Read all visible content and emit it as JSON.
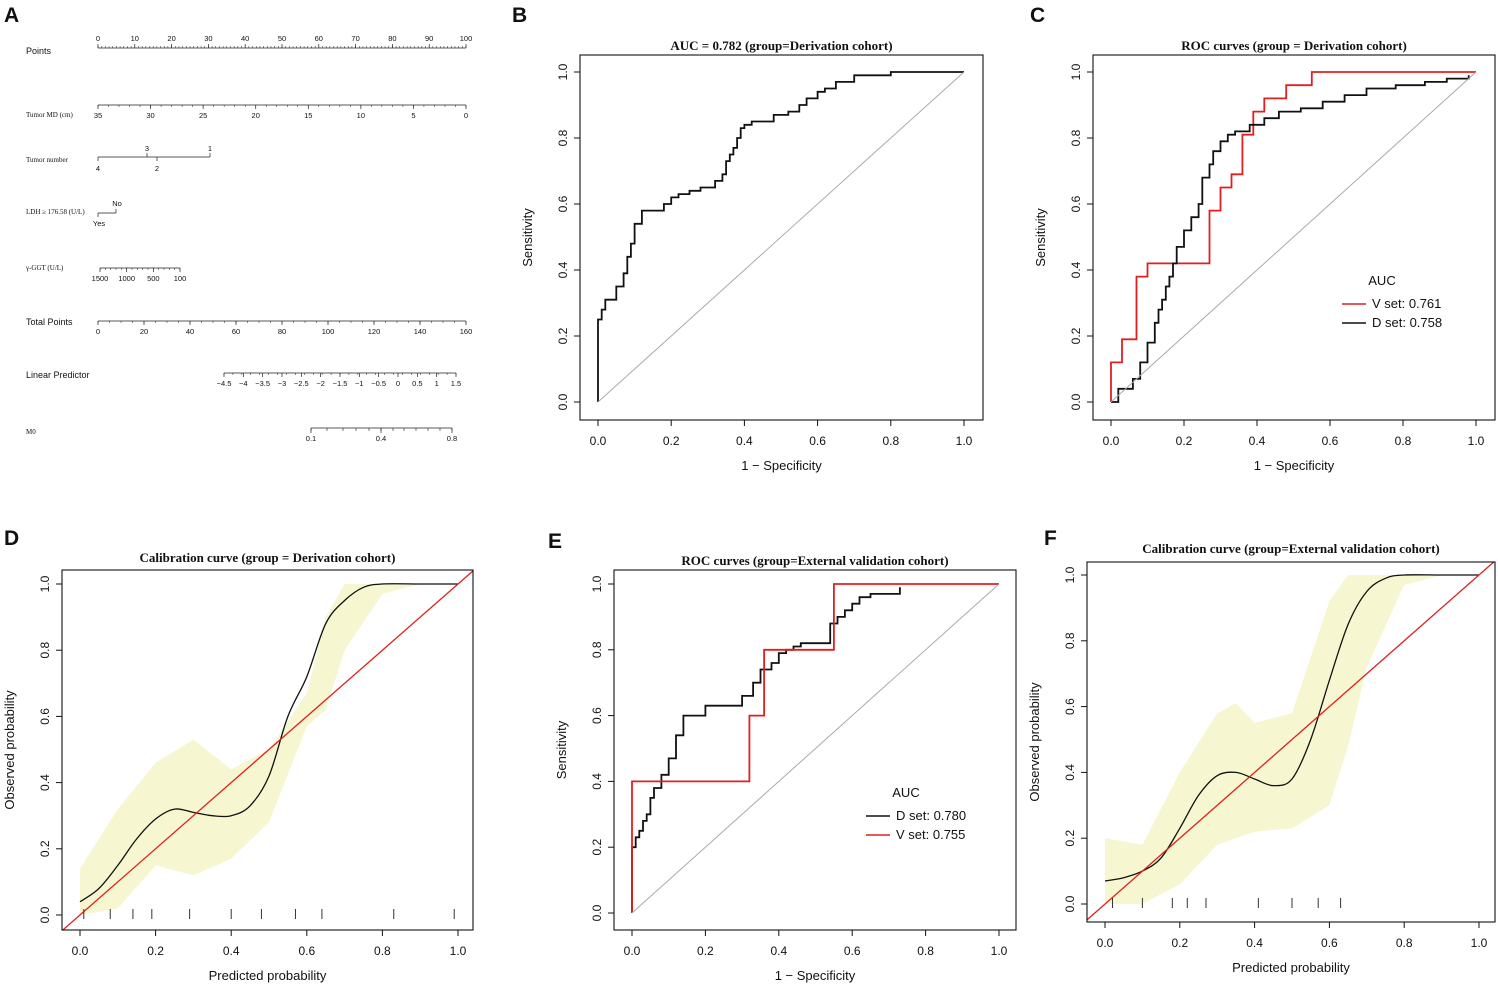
{
  "panels": {
    "A": {
      "label": "A"
    },
    "B": {
      "label": "B"
    },
    "C": {
      "label": "C"
    },
    "D": {
      "label": "D"
    },
    "E": {
      "label": "E"
    },
    "F": {
      "label": "F"
    }
  },
  "nomogram": {
    "rows": [
      {
        "label": "Points",
        "ticks": [
          "0",
          "10",
          "20",
          "30",
          "40",
          "50",
          "60",
          "70",
          "80",
          "90",
          "100"
        ],
        "minor": 100
      },
      {
        "label": "Tumor MD (cm)",
        "ticks": [
          "35",
          "30",
          "25",
          "20",
          "15",
          "10",
          "5",
          "0"
        ],
        "minor": 35
      },
      {
        "label": "Tumor number",
        "ticks_top": [
          "3",
          "1"
        ],
        "ticks_bottom": [
          "4",
          "2"
        ]
      },
      {
        "label": "LDH ≥ 176.58 (U/L)",
        "ticks_top": [
          "No"
        ],
        "ticks_bottom": [
          "Yes"
        ]
      },
      {
        "label": "γ-GGT (U/L)",
        "ticks": [
          "1500",
          "1000",
          "500",
          "100"
        ],
        "minor": 15
      },
      {
        "label": "Total Points",
        "ticks": [
          "0",
          "20",
          "40",
          "60",
          "80",
          "100",
          "120",
          "140",
          "160"
        ],
        "minor": 32
      },
      {
        "label": "Linear Predictor",
        "ticks": [
          "−4.5",
          "−4",
          "−3.5",
          "−3",
          "−2.5",
          "−2",
          "−1.5",
          "−1",
          "−0.5",
          "0",
          "0.5",
          "1",
          "1.5"
        ]
      },
      {
        "label": "M0",
        "ticks": [
          "0.1",
          "0.4",
          "0.8"
        ],
        "minor": 14
      }
    ]
  },
  "chart_data": [
    {
      "id": "B",
      "type": "line",
      "title": "AUC = 0.782  (group=Derivation cohort)",
      "xlabel": "1 − Specificity",
      "ylabel": "Sensitivity",
      "xlim": [
        0,
        1
      ],
      "ylim": [
        0,
        1
      ],
      "ticks": [
        "0.0",
        "0.2",
        "0.4",
        "0.6",
        "0.8",
        "1.0"
      ],
      "series": [
        {
          "name": "Derivation cohort",
          "color": "#111111",
          "x": [
            0,
            0,
            0.01,
            0.01,
            0.02,
            0.02,
            0.05,
            0.05,
            0.07,
            0.07,
            0.08,
            0.08,
            0.09,
            0.09,
            0.1,
            0.1,
            0.12,
            0.12,
            0.18,
            0.18,
            0.2,
            0.2,
            0.22,
            0.22,
            0.25,
            0.25,
            0.28,
            0.28,
            0.32,
            0.32,
            0.34,
            0.34,
            0.35,
            0.35,
            0.36,
            0.36,
            0.37,
            0.37,
            0.38,
            0.38,
            0.39,
            0.39,
            0.4,
            0.4,
            0.42,
            0.42,
            0.48,
            0.48,
            0.52,
            0.52,
            0.55,
            0.55,
            0.57,
            0.57,
            0.6,
            0.6,
            0.62,
            0.62,
            0.65,
            0.65,
            0.7,
            0.7,
            0.8,
            0.8,
            1
          ],
          "y": [
            0,
            0.25,
            0.25,
            0.28,
            0.28,
            0.31,
            0.31,
            0.35,
            0.35,
            0.39,
            0.39,
            0.44,
            0.44,
            0.48,
            0.48,
            0.54,
            0.54,
            0.58,
            0.58,
            0.6,
            0.6,
            0.62,
            0.62,
            0.63,
            0.63,
            0.64,
            0.64,
            0.65,
            0.65,
            0.67,
            0.67,
            0.69,
            0.69,
            0.73,
            0.73,
            0.75,
            0.75,
            0.77,
            0.77,
            0.8,
            0.8,
            0.83,
            0.83,
            0.84,
            0.84,
            0.85,
            0.85,
            0.87,
            0.87,
            0.88,
            0.88,
            0.9,
            0.9,
            0.92,
            0.92,
            0.94,
            0.94,
            0.95,
            0.95,
            0.97,
            0.97,
            0.99,
            0.99,
            1,
            1
          ]
        },
        {
          "name": "reference",
          "color": "#aaaaaa",
          "x": [
            0,
            1
          ],
          "y": [
            0,
            1
          ]
        }
      ]
    },
    {
      "id": "C",
      "type": "line",
      "title": "ROC curves (group = Derivation cohort)",
      "xlabel": "1 − Specificity",
      "ylabel": "Sensitivity",
      "xlim": [
        0,
        1
      ],
      "ylim": [
        0,
        1
      ],
      "ticks": [
        "0.0",
        "0.2",
        "0.4",
        "0.6",
        "0.8",
        "1.0"
      ],
      "legend": {
        "title": "AUC",
        "entries": [
          "V set: 0.761",
          "D set: 0.758"
        ],
        "position": "right"
      },
      "series": [
        {
          "name": "V set: 0.761",
          "color": "#e02020",
          "x": [
            0,
            0,
            0.03,
            0.03,
            0.07,
            0.07,
            0.1,
            0.1,
            0.27,
            0.27,
            0.3,
            0.3,
            0.33,
            0.33,
            0.36,
            0.36,
            0.39,
            0.39,
            0.42,
            0.42,
            0.48,
            0.48,
            0.55,
            0.55,
            0.6,
            0.6,
            0.68,
            0.68,
            1
          ],
          "y": [
            0,
            0.12,
            0.12,
            0.19,
            0.19,
            0.38,
            0.38,
            0.42,
            0.42,
            0.58,
            0.58,
            0.65,
            0.65,
            0.69,
            0.69,
            0.81,
            0.81,
            0.88,
            0.88,
            0.92,
            0.92,
            0.96,
            0.96,
            1,
            1,
            1,
            1,
            1,
            1
          ]
        },
        {
          "name": "D set: 0.758",
          "color": "#111111",
          "x": [
            0,
            0.02,
            0.02,
            0.06,
            0.06,
            0.08,
            0.08,
            0.1,
            0.1,
            0.12,
            0.12,
            0.13,
            0.13,
            0.14,
            0.14,
            0.15,
            0.15,
            0.16,
            0.16,
            0.17,
            0.17,
            0.18,
            0.18,
            0.2,
            0.2,
            0.22,
            0.22,
            0.24,
            0.24,
            0.25,
            0.25,
            0.27,
            0.27,
            0.28,
            0.28,
            0.3,
            0.3,
            0.32,
            0.32,
            0.34,
            0.34,
            0.38,
            0.38,
            0.42,
            0.42,
            0.46,
            0.46,
            0.52,
            0.52,
            0.58,
            0.58,
            0.64,
            0.64,
            0.7,
            0.7,
            0.78,
            0.78,
            0.86,
            0.86,
            0.92,
            0.92,
            0.98,
            0.98
          ],
          "y": [
            0,
            0,
            0.04,
            0.04,
            0.07,
            0.07,
            0.12,
            0.12,
            0.18,
            0.18,
            0.24,
            0.24,
            0.28,
            0.28,
            0.31,
            0.31,
            0.35,
            0.35,
            0.38,
            0.38,
            0.42,
            0.42,
            0.47,
            0.47,
            0.52,
            0.52,
            0.56,
            0.56,
            0.6,
            0.6,
            0.68,
            0.68,
            0.72,
            0.72,
            0.76,
            0.76,
            0.79,
            0.79,
            0.81,
            0.81,
            0.82,
            0.82,
            0.84,
            0.84,
            0.86,
            0.86,
            0.88,
            0.88,
            0.89,
            0.89,
            0.91,
            0.91,
            0.93,
            0.93,
            0.95,
            0.95,
            0.96,
            0.96,
            0.97,
            0.97,
            0.98,
            0.98,
            0.99
          ]
        },
        {
          "name": "reference",
          "color": "#aaaaaa",
          "x": [
            0,
            1
          ],
          "y": [
            0,
            1
          ]
        }
      ]
    },
    {
      "id": "D",
      "type": "line",
      "title": "Calibration curve (group = Derivation cohort)",
      "xlabel": "Predicted probability",
      "ylabel": "Observed probability",
      "xlim": [
        0,
        1
      ],
      "ylim": [
        0,
        1
      ],
      "ticks": [
        "0.0",
        "0.2",
        "0.4",
        "0.6",
        "0.8",
        "1.0"
      ],
      "band": {
        "color": "#f6f6d0",
        "x": [
          0,
          0.1,
          0.2,
          0.3,
          0.4,
          0.5,
          0.6,
          0.65,
          0.7,
          0.8,
          0.9,
          1
        ],
        "upper": [
          0.14,
          0.32,
          0.46,
          0.53,
          0.44,
          0.5,
          0.67,
          0.9,
          1,
          1,
          1,
          1
        ],
        "lower": [
          0.0,
          0.02,
          0.15,
          0.12,
          0.17,
          0.28,
          0.57,
          0.62,
          0.8,
          0.97,
          1,
          1
        ]
      },
      "rug": [
        0.01,
        0.08,
        0.14,
        0.19,
        0.29,
        0.4,
        0.48,
        0.57,
        0.64,
        0.83,
        0.99
      ],
      "series": [
        {
          "name": "calibration",
          "color": "#111111",
          "x": [
            0,
            0.05,
            0.1,
            0.15,
            0.2,
            0.25,
            0.3,
            0.35,
            0.4,
            0.45,
            0.5,
            0.55,
            0.6,
            0.65,
            0.7,
            0.75,
            0.8,
            0.9,
            1
          ],
          "y": [
            0.04,
            0.08,
            0.15,
            0.23,
            0.29,
            0.32,
            0.31,
            0.3,
            0.3,
            0.33,
            0.42,
            0.6,
            0.72,
            0.88,
            0.95,
            0.99,
            1,
            1,
            1
          ]
        },
        {
          "name": "ideal",
          "color": "#e02020",
          "x": [
            -0.05,
            1.05
          ],
          "y": [
            -0.05,
            1.05
          ]
        }
      ]
    },
    {
      "id": "E",
      "type": "line",
      "title": "ROC curves (group=External validation cohort)",
      "xlabel": "1 − Specificity",
      "ylabel": "Sensitivity",
      "xlim": [
        0,
        1
      ],
      "ylim": [
        0,
        1
      ],
      "ticks": [
        "0.0",
        "0.2",
        "0.4",
        "0.6",
        "0.8",
        "1.0"
      ],
      "legend": {
        "title": "AUC",
        "entries": [
          "D set: 0.780",
          "V set: 0.755"
        ],
        "position": "bottom-right"
      },
      "series": [
        {
          "name": "D set: 0.780",
          "color": "#111111",
          "x": [
            0,
            0,
            0.01,
            0.01,
            0.02,
            0.02,
            0.03,
            0.03,
            0.04,
            0.04,
            0.05,
            0.05,
            0.06,
            0.06,
            0.08,
            0.08,
            0.1,
            0.1,
            0.12,
            0.12,
            0.14,
            0.14,
            0.2,
            0.2,
            0.3,
            0.3,
            0.33,
            0.33,
            0.35,
            0.35,
            0.38,
            0.38,
            0.4,
            0.4,
            0.42,
            0.42,
            0.44,
            0.44,
            0.46,
            0.46,
            0.54,
            0.54,
            0.56,
            0.56,
            0.58,
            0.58,
            0.6,
            0.6,
            0.62,
            0.62,
            0.65,
            0.65,
            0.73,
            0.73
          ],
          "y": [
            0,
            0.2,
            0.2,
            0.23,
            0.23,
            0.25,
            0.25,
            0.28,
            0.28,
            0.3,
            0.3,
            0.35,
            0.35,
            0.38,
            0.38,
            0.42,
            0.42,
            0.47,
            0.47,
            0.54,
            0.54,
            0.6,
            0.6,
            0.63,
            0.63,
            0.66,
            0.66,
            0.7,
            0.7,
            0.74,
            0.74,
            0.76,
            0.76,
            0.79,
            0.79,
            0.8,
            0.8,
            0.81,
            0.81,
            0.82,
            0.82,
            0.88,
            0.88,
            0.9,
            0.9,
            0.92,
            0.92,
            0.94,
            0.94,
            0.96,
            0.96,
            0.97,
            0.97,
            0.99
          ]
        },
        {
          "name": "V set: 0.755",
          "color": "#e02020",
          "x": [
            0,
            0,
            0.32,
            0.32,
            0.36,
            0.36,
            0.55,
            0.55,
            1
          ],
          "y": [
            0,
            0.4,
            0.4,
            0.6,
            0.6,
            0.8,
            0.8,
            1,
            1
          ]
        },
        {
          "name": "reference",
          "color": "#aaaaaa",
          "x": [
            0,
            1
          ],
          "y": [
            0,
            1
          ]
        }
      ]
    },
    {
      "id": "F",
      "type": "line",
      "title": "Calibration curve (group=External validation cohort)",
      "xlabel": "Predicted probability",
      "ylabel": "Observed probability",
      "xlim": [
        0,
        1
      ],
      "ylim": [
        0,
        1
      ],
      "ticks": [
        "0.0",
        "0.2",
        "0.4",
        "0.6",
        "0.8",
        "1.0"
      ],
      "band": {
        "color": "#f6f6d0",
        "x": [
          0,
          0.1,
          0.2,
          0.3,
          0.35,
          0.4,
          0.5,
          0.6,
          0.65,
          0.7,
          0.8,
          0.9,
          1
        ],
        "upper": [
          0.2,
          0.18,
          0.4,
          0.58,
          0.61,
          0.55,
          0.58,
          0.92,
          1,
          1,
          1,
          1,
          1
        ],
        "lower": [
          0.0,
          0.0,
          0.06,
          0.18,
          0.2,
          0.22,
          0.23,
          0.3,
          0.48,
          0.72,
          0.97,
          1,
          1
        ]
      },
      "rug": [
        0.02,
        0.1,
        0.18,
        0.22,
        0.27,
        0.41,
        0.5,
        0.57,
        0.63
      ],
      "series": [
        {
          "name": "calibration",
          "color": "#111111",
          "x": [
            0,
            0.05,
            0.1,
            0.15,
            0.2,
            0.25,
            0.3,
            0.35,
            0.4,
            0.45,
            0.5,
            0.55,
            0.6,
            0.65,
            0.7,
            0.75,
            0.8,
            0.9,
            1
          ],
          "y": [
            0.07,
            0.08,
            0.1,
            0.14,
            0.23,
            0.33,
            0.39,
            0.4,
            0.38,
            0.36,
            0.38,
            0.5,
            0.68,
            0.85,
            0.95,
            0.99,
            1,
            1,
            1
          ]
        },
        {
          "name": "ideal",
          "color": "#e02020",
          "x": [
            -0.05,
            1.05
          ],
          "y": [
            -0.05,
            1.05
          ]
        }
      ]
    }
  ]
}
